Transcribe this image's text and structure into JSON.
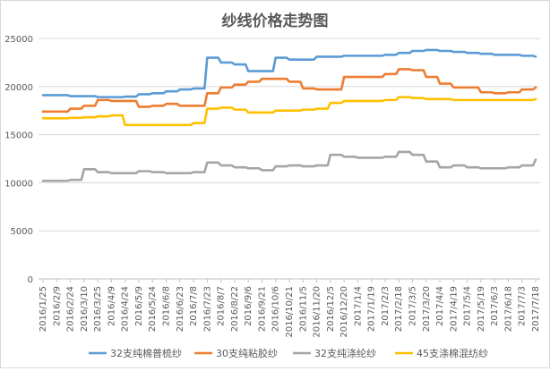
{
  "chart_data": {
    "type": "line",
    "title": "纱线价格走势图",
    "xlabel": "",
    "ylabel": "",
    "ylim": [
      0,
      25000
    ],
    "yticks": [
      0,
      5000,
      10000,
      15000,
      20000,
      25000
    ],
    "grid": "horizontal",
    "legend_position": "bottom",
    "categories": [
      "2016/1/25",
      "2016/2/9",
      "2016/2/24",
      "2016/3/10",
      "2016/3/25",
      "2016/4/9",
      "2016/4/24",
      "2016/5/9",
      "2016/5/24",
      "2016/6/8",
      "2016/6/23",
      "2016/7/8",
      "2016/7/23",
      "2016/8/7",
      "2016/8/22",
      "2016/9/6",
      "2016/9/21",
      "2016/10/6",
      "2016/10/21",
      "2016/11/5",
      "2016/11/20",
      "2016/12/5",
      "2016/12/20",
      "2017/1/4",
      "2017/1/19",
      "2017/2/3",
      "2017/2/18",
      "2017/3/5",
      "2017/3/20",
      "2017/4/4",
      "2017/4/19",
      "2017/5/4",
      "2017/5/19",
      "2017/6/3",
      "2017/6/18",
      "2017/7/3",
      "2017/7/18"
    ],
    "series": [
      {
        "name": "32支纯棉普梳纱",
        "color": "#5b9bd5",
        "values": [
          19100,
          19100,
          19000,
          19000,
          18900,
          18900,
          18950,
          19200,
          19300,
          19500,
          19700,
          19800,
          23000,
          22500,
          22300,
          21600,
          21600,
          23000,
          22800,
          22800,
          23100,
          23100,
          23200,
          23200,
          23200,
          23300,
          23500,
          23700,
          23800,
          23700,
          23600,
          23500,
          23400,
          23300,
          23300,
          23200,
          23100
        ]
      },
      {
        "name": "30支纯粘胶纱",
        "color": "#ed7d31",
        "values": [
          17400,
          17400,
          17700,
          18000,
          18600,
          18500,
          18500,
          17900,
          18000,
          18200,
          18000,
          18000,
          19300,
          19900,
          20200,
          20500,
          20800,
          20800,
          20500,
          19800,
          19700,
          19700,
          21000,
          21000,
          21000,
          21300,
          21800,
          21700,
          21000,
          20300,
          19900,
          19900,
          19400,
          19300,
          19400,
          19700,
          19900
        ]
      },
      {
        "name": "32支纯涤纶纱",
        "color": "#a5a5a5",
        "values": [
          10200,
          10200,
          10300,
          11400,
          11100,
          11000,
          11000,
          11200,
          11100,
          11000,
          11000,
          11100,
          12100,
          11800,
          11600,
          11500,
          11300,
          11700,
          11800,
          11700,
          11800,
          12900,
          12700,
          12600,
          12600,
          12700,
          13200,
          12900,
          12200,
          11600,
          11800,
          11600,
          11500,
          11500,
          11600,
          11800,
          12400
        ]
      },
      {
        "name": "45支涤棉混纺纱",
        "color": "#ffc000",
        "values": [
          16700,
          16700,
          16750,
          16800,
          16900,
          17000,
          16000,
          16000,
          16000,
          16000,
          16000,
          16200,
          17700,
          17800,
          17600,
          17300,
          17300,
          17500,
          17500,
          17600,
          17700,
          18300,
          18500,
          18500,
          18500,
          18600,
          18900,
          18800,
          18700,
          18700,
          18600,
          18600,
          18600,
          18600,
          18600,
          18600,
          18700
        ]
      }
    ]
  }
}
